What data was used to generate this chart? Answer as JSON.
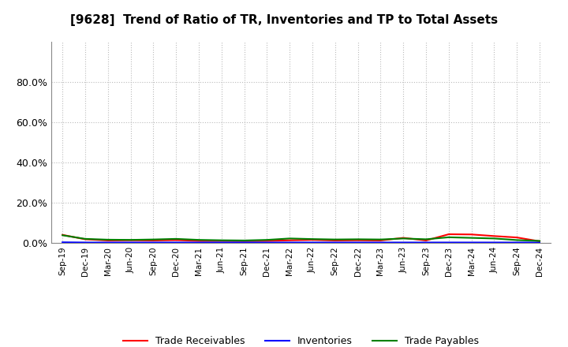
{
  "title": "[9628]  Trend of Ratio of TR, Inventories and TP to Total Assets",
  "x_labels": [
    "Sep-19",
    "Dec-19",
    "Mar-20",
    "Jun-20",
    "Sep-20",
    "Dec-20",
    "Mar-21",
    "Jun-21",
    "Sep-21",
    "Dec-21",
    "Mar-22",
    "Jun-22",
    "Sep-22",
    "Dec-22",
    "Mar-23",
    "Jun-23",
    "Sep-23",
    "Dec-23",
    "Mar-24",
    "Jun-24",
    "Sep-24",
    "Dec-24"
  ],
  "trade_receivables": [
    0.04,
    0.018,
    0.012,
    0.013,
    0.012,
    0.014,
    0.01,
    0.01,
    0.009,
    0.01,
    0.013,
    0.015,
    0.012,
    0.013,
    0.012,
    0.025,
    0.012,
    0.043,
    0.042,
    0.034,
    0.027,
    0.008
  ],
  "inventories": [
    0.003,
    0.002,
    0.002,
    0.002,
    0.002,
    0.002,
    0.002,
    0.002,
    0.002,
    0.002,
    0.002,
    0.002,
    0.002,
    0.002,
    0.002,
    0.002,
    0.002,
    0.002,
    0.002,
    0.002,
    0.002,
    0.002
  ],
  "trade_payables": [
    0.038,
    0.02,
    0.016,
    0.015,
    0.017,
    0.02,
    0.015,
    0.013,
    0.012,
    0.015,
    0.022,
    0.019,
    0.017,
    0.018,
    0.017,
    0.022,
    0.018,
    0.028,
    0.025,
    0.022,
    0.014,
    0.01
  ],
  "color_tr": "#ff0000",
  "color_inv": "#0000ff",
  "color_tp": "#008000",
  "ylim": [
    0.0,
    1.0
  ],
  "yticks": [
    0.0,
    0.2,
    0.4,
    0.6,
    0.8
  ],
  "ytick_labels": [
    "0.0%",
    "20.0%",
    "40.0%",
    "60.0%",
    "80.0%"
  ],
  "legend_labels": [
    "Trade Receivables",
    "Inventories",
    "Trade Payables"
  ],
  "bg_color": "#ffffff",
  "plot_bg_color": "#ffffff",
  "grid_color": "#bbbbbb"
}
